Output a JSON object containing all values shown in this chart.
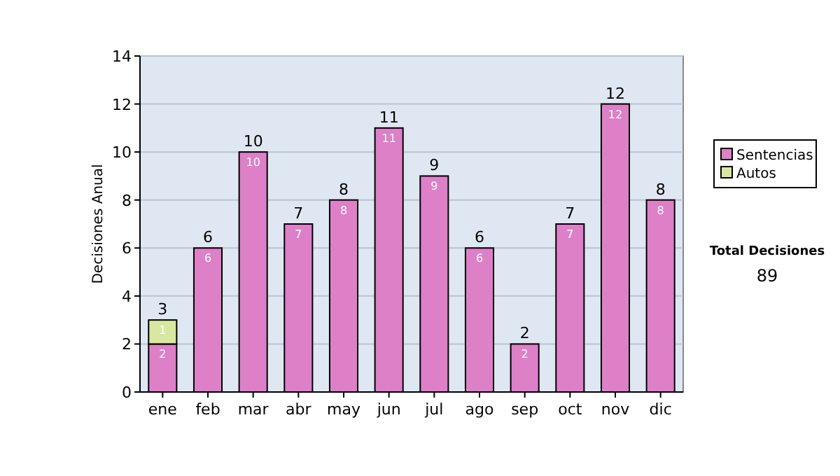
{
  "chart_data": {
    "type": "bar",
    "stacked": true,
    "ylabel": "Decisiones Anual",
    "categories": [
      "ene",
      "feb",
      "mar",
      "abr",
      "may",
      "jun",
      "jul",
      "ago",
      "sep",
      "oct",
      "nov",
      "dic"
    ],
    "series": [
      {
        "name": "Sentencias",
        "color": "#dd80c8",
        "values": [
          2,
          6,
          10,
          7,
          8,
          11,
          9,
          6,
          2,
          7,
          12,
          8
        ],
        "value_labels": [
          "2",
          "6",
          "10",
          "7",
          "8",
          "11",
          "9",
          "6",
          "2",
          "7",
          "12",
          "8"
        ]
      },
      {
        "name": "Autos",
        "color": "#d8e8a0",
        "values": [
          1,
          0,
          0,
          0,
          0,
          0,
          0,
          0,
          0,
          0,
          0,
          0
        ],
        "value_labels": [
          "1",
          null,
          null,
          null,
          null,
          null,
          null,
          null,
          null,
          null,
          null,
          null
        ]
      }
    ],
    "totals": [
      "3",
      "6",
      "10",
      "7",
      "8",
      "11",
      "9",
      "6",
      "2",
      "7",
      "12",
      "8"
    ],
    "ylim": [
      0,
      14
    ],
    "yticks": [
      0,
      2,
      4,
      6,
      8,
      10,
      12,
      14
    ],
    "grid": "y",
    "legend": "right",
    "annotations": [
      "Total Decisiones",
      "89"
    ]
  }
}
